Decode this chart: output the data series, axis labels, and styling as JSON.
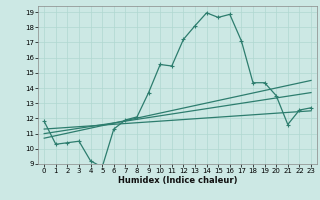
{
  "xlabel": "Humidex (Indice chaleur)",
  "bg_color": "#cce8e4",
  "line_color": "#2d7d6e",
  "grid_color": "#b0d8d0",
  "xlim": [
    -0.5,
    23.5
  ],
  "ylim": [
    9,
    19.4
  ],
  "xticks": [
    0,
    1,
    2,
    3,
    4,
    5,
    6,
    7,
    8,
    9,
    10,
    11,
    12,
    13,
    14,
    15,
    16,
    17,
    18,
    19,
    20,
    21,
    22,
    23
  ],
  "yticks": [
    9,
    10,
    11,
    12,
    13,
    14,
    15,
    16,
    17,
    18,
    19
  ],
  "curve1_x": [
    0,
    1,
    2,
    3,
    4,
    5,
    6,
    7,
    8,
    9,
    10,
    11,
    12,
    13,
    14,
    15,
    16,
    17,
    18,
    19,
    20,
    21,
    22,
    23
  ],
  "curve1_y": [
    11.8,
    10.3,
    10.4,
    10.5,
    9.2,
    8.8,
    11.3,
    11.9,
    12.1,
    13.7,
    15.55,
    15.45,
    17.2,
    18.1,
    18.95,
    18.65,
    18.85,
    17.1,
    14.35,
    14.35,
    13.5,
    11.6,
    12.55,
    12.7
  ],
  "line2_x": [
    0,
    23
  ],
  "line2_y": [
    10.7,
    14.5
  ],
  "line3_x": [
    0,
    23
  ],
  "line3_y": [
    11.0,
    13.7
  ],
  "line4_x": [
    0,
    23
  ],
  "line4_y": [
    11.3,
    12.5
  ]
}
